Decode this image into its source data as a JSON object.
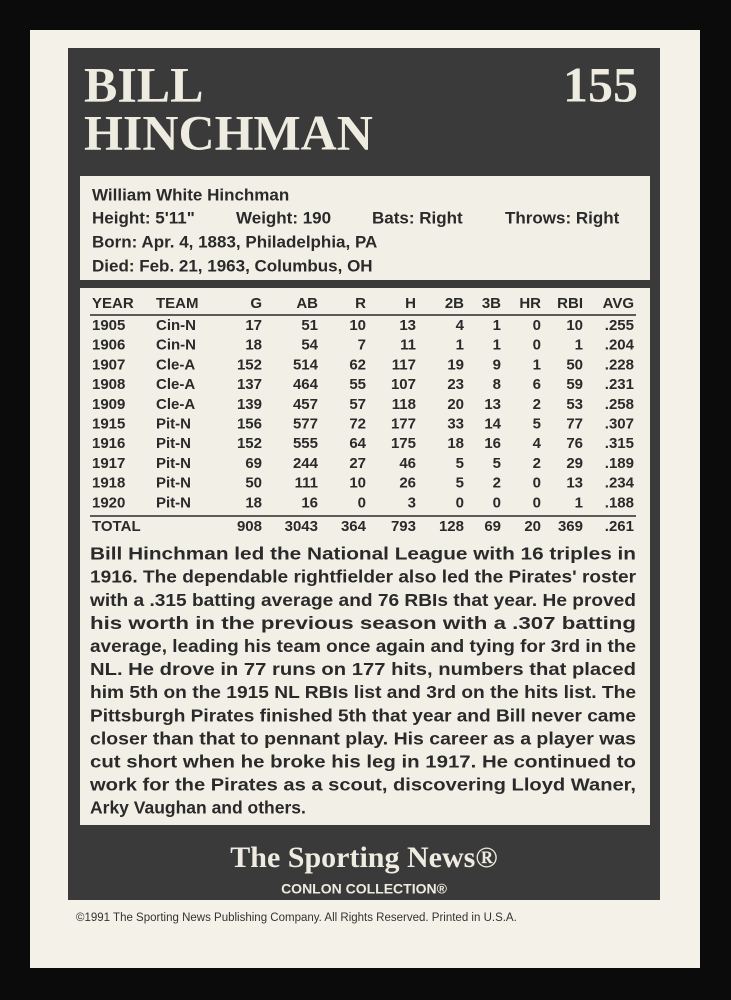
{
  "card": {
    "name_lines": [
      "BILL",
      "HINCHMAN"
    ],
    "number": "155",
    "bio": {
      "full_name": "William White Hinchman",
      "height": "Height: 5'11\"",
      "weight": "Weight: 190",
      "bats": "Bats: Right",
      "throws": "Throws: Right",
      "born": "Born: Apr. 4, 1883, Philadelphia, PA",
      "died": "Died: Feb. 21, 1963, Columbus, OH"
    },
    "table": {
      "headers": [
        "YEAR",
        "TEAM",
        "G",
        "AB",
        "R",
        "H",
        "2B",
        "3B",
        "HR",
        "RBI",
        "AVG"
      ],
      "rows": [
        [
          "1905",
          "Cin-N",
          "17",
          "51",
          "10",
          "13",
          "4",
          "1",
          "0",
          "10",
          ".255"
        ],
        [
          "1906",
          "Cin-N",
          "18",
          "54",
          "7",
          "11",
          "1",
          "1",
          "0",
          "1",
          ".204"
        ],
        [
          "1907",
          "Cle-A",
          "152",
          "514",
          "62",
          "117",
          "19",
          "9",
          "1",
          "50",
          ".228"
        ],
        [
          "1908",
          "Cle-A",
          "137",
          "464",
          "55",
          "107",
          "23",
          "8",
          "6",
          "59",
          ".231"
        ],
        [
          "1909",
          "Cle-A",
          "139",
          "457",
          "57",
          "118",
          "20",
          "13",
          "2",
          "53",
          ".258"
        ],
        [
          "1915",
          "Pit-N",
          "156",
          "577",
          "72",
          "177",
          "33",
          "14",
          "5",
          "77",
          ".307"
        ],
        [
          "1916",
          "Pit-N",
          "152",
          "555",
          "64",
          "175",
          "18",
          "16",
          "4",
          "76",
          ".315"
        ],
        [
          "1917",
          "Pit-N",
          "69",
          "244",
          "27",
          "46",
          "5",
          "5",
          "2",
          "29",
          ".189"
        ],
        [
          "1918",
          "Pit-N",
          "50",
          "111",
          "10",
          "26",
          "5",
          "2",
          "0",
          "13",
          ".234"
        ],
        [
          "1920",
          "Pit-N",
          "18",
          "16",
          "0",
          "3",
          "0",
          "0",
          "0",
          "1",
          ".188"
        ]
      ],
      "total": {
        "label": "TOTAL",
        "values": [
          "908",
          "3043",
          "364",
          "793",
          "128",
          "69",
          "20",
          "369",
          ".261"
        ]
      }
    },
    "bio_text_lines": [
      "Bill Hinchman led the National League with 16 triples in",
      "1916. The dependable rightfielder also led the Pirates' roster",
      "with a .315 batting average and 76 RBIs that year. He proved",
      "his worth in the previous season with a .307 batting",
      "average, leading his team once again and tying for 3rd in the",
      "NL. He drove in 77 runs on 177 hits, numbers that placed",
      "him 5th on the 1915 NL RBIs list and 3rd on the hits list. The",
      "Pittsburgh Pirates finished 5th that year and Bill never came",
      "closer than that to pennant play. His career as a player was",
      "cut short when he broke his leg in 1917. He continued to",
      "work for the Pirates as a scout, discovering Lloyd Waner,",
      "Arky Vaughan and others."
    ],
    "footer": {
      "logo": "The Sporting News®",
      "collection": "CONLON COLLECTION®",
      "copyright": "©1991 The Sporting News Publishing Company. All Rights Reserved. Printed in U.S.A."
    }
  }
}
